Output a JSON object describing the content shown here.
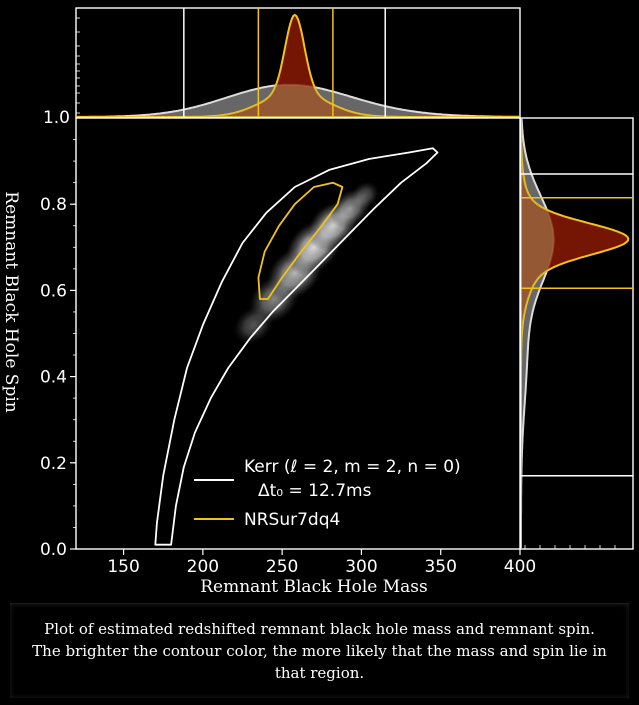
{
  "chart_data": {
    "type": "contour",
    "x_axis": {
      "label": "Remnant Black Hole Mass",
      "range": [
        120,
        400
      ],
      "ticks": [
        150,
        200,
        250,
        300,
        350,
        400
      ]
    },
    "y_axis": {
      "label": "Remnant Black Hole Spin",
      "range": [
        0.0,
        1.0
      ],
      "ticks": [
        0.0,
        0.2,
        0.4,
        0.6,
        0.8,
        1.0
      ]
    },
    "series": [
      {
        "name": "Kerr (ℓ = 2, m = 2, n = 0)",
        "name_line2": "Δt₀ = 12.7ms",
        "color": "#ffffff",
        "fill": "#8a8a8a",
        "contour": [
          [
            170,
            0.01
          ],
          [
            171,
            0.06
          ],
          [
            175,
            0.17
          ],
          [
            182,
            0.3
          ],
          [
            190,
            0.42
          ],
          [
            200,
            0.52
          ],
          [
            212,
            0.62
          ],
          [
            225,
            0.71
          ],
          [
            240,
            0.78
          ],
          [
            258,
            0.84
          ],
          [
            280,
            0.88
          ],
          [
            305,
            0.905
          ],
          [
            330,
            0.92
          ],
          [
            345,
            0.93
          ],
          [
            348,
            0.92
          ],
          [
            341,
            0.895
          ],
          [
            325,
            0.85
          ],
          [
            308,
            0.79
          ],
          [
            292,
            0.73
          ],
          [
            276,
            0.67
          ],
          [
            260,
            0.61
          ],
          [
            244,
            0.55
          ],
          [
            230,
            0.49
          ],
          [
            216,
            0.42
          ],
          [
            205,
            0.35
          ],
          [
            195,
            0.27
          ],
          [
            188,
            0.19
          ],
          [
            183,
            0.1
          ],
          [
            180,
            0.01
          ]
        ],
        "mass_marginal_bounds": [
          188,
          315
        ],
        "spin_marginal_bounds": [
          0.17,
          0.87
        ]
      },
      {
        "name": "NRSur7dq4",
        "color": "#f2c21b",
        "fill": "#8a1a06",
        "contour": [
          [
            236,
            0.58
          ],
          [
            235,
            0.63
          ],
          [
            239,
            0.69
          ],
          [
            248,
            0.75
          ],
          [
            258,
            0.8
          ],
          [
            270,
            0.84
          ],
          [
            282,
            0.85
          ],
          [
            288,
            0.84
          ],
          [
            285,
            0.8
          ],
          [
            275,
            0.75
          ],
          [
            262,
            0.69
          ],
          [
            250,
            0.63
          ],
          [
            241,
            0.58
          ]
        ],
        "mass_marginal_bounds": [
          235,
          282
        ],
        "spin_marginal_bounds": [
          0.605,
          0.815
        ]
      }
    ],
    "legend": {
      "position": "lower-right"
    },
    "top_marginal_y_tick": "1.0",
    "grid": false
  },
  "caption": "Plot of estimated redshifted remnant black hole mass and remnant spin. The brighter the contour color, the more likely that the mass and spin lie in that region."
}
